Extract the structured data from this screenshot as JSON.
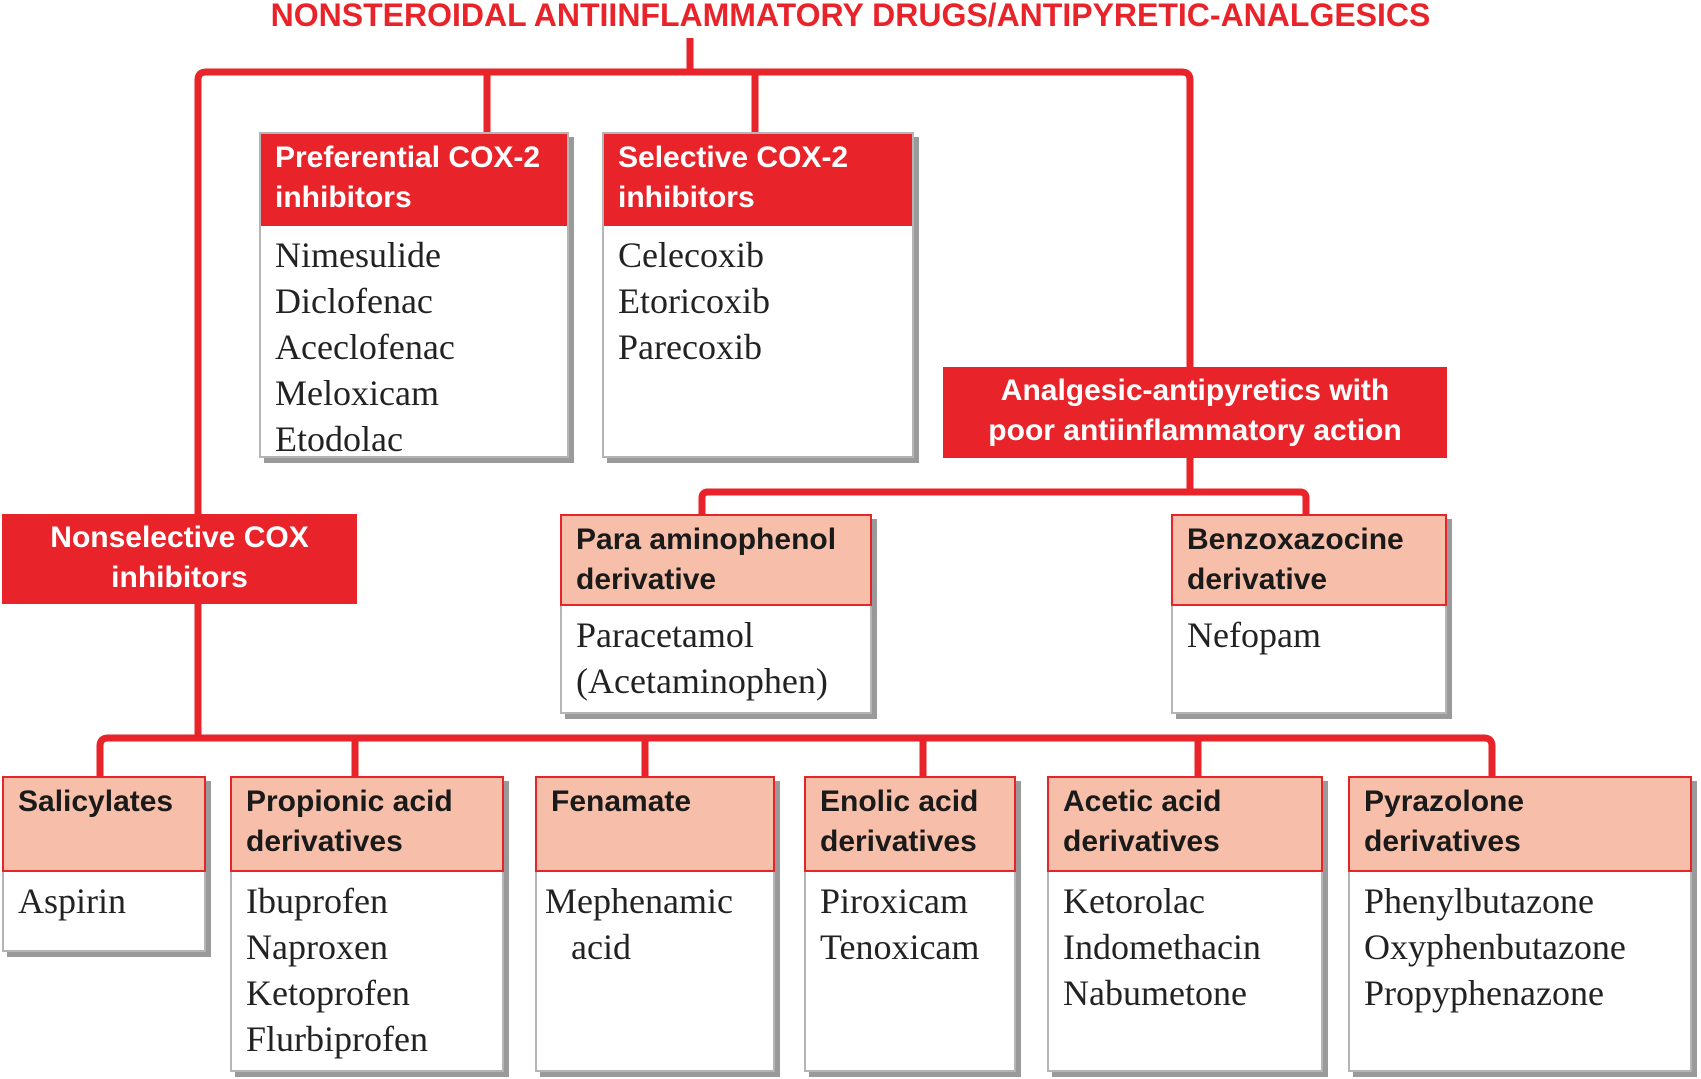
{
  "title": "NONSTEROIDAL ANTIINFLAMMATORY DRUGS/ANTIPYRETIC-ANALGESICS",
  "colors": {
    "accent_red": "#e8232a",
    "header_pink": "#f7bfa9"
  },
  "preferential": {
    "heading": [
      "Preferential COX-2",
      "inhibitors"
    ],
    "items": [
      "Nimesulide",
      "Diclofenac",
      "Aceclofenac",
      "Meloxicam",
      "Etodolac"
    ]
  },
  "selective": {
    "heading": [
      "Selective COX-2",
      "inhibitors"
    ],
    "items": [
      "Celecoxib",
      "Etoricoxib",
      "Parecoxib"
    ]
  },
  "analgesic": {
    "heading": [
      "Analgesic-antipyretics with",
      "poor antiinflammatory action"
    ]
  },
  "para": {
    "heading": [
      "Para aminophenol",
      "derivative"
    ],
    "items": [
      "Paracetamol",
      "(Acetaminophen)"
    ]
  },
  "benzo": {
    "heading": [
      "Benzoxazocine",
      "derivative"
    ],
    "items": [
      "Nefopam"
    ]
  },
  "nonselective": {
    "heading": [
      "Nonselective COX",
      "inhibitors"
    ]
  },
  "salicylates": {
    "heading": [
      "Salicylates"
    ],
    "items": [
      "Aspirin"
    ]
  },
  "propionic": {
    "heading": [
      "Propionic acid",
      "derivatives"
    ],
    "items": [
      "Ibuprofen",
      "Naproxen",
      "Ketoprofen",
      "Flurbiprofen"
    ]
  },
  "fenamate": {
    "heading": [
      "Fenamate"
    ],
    "items": [
      "Mephenamic",
      "acid"
    ]
  },
  "enolic": {
    "heading": [
      "Enolic acid",
      "derivatives"
    ],
    "items": [
      "Piroxicam",
      "Tenoxicam"
    ]
  },
  "acetic": {
    "heading": [
      "Acetic acid",
      "derivatives"
    ],
    "items": [
      "Ketorolac",
      "Indomethacin",
      "Nabumetone"
    ]
  },
  "pyrazolone": {
    "heading": [
      "Pyrazolone",
      "derivatives"
    ],
    "items": [
      "Phenylbutazone",
      "Oxyphenbutazone",
      "Propyphenazone"
    ]
  }
}
